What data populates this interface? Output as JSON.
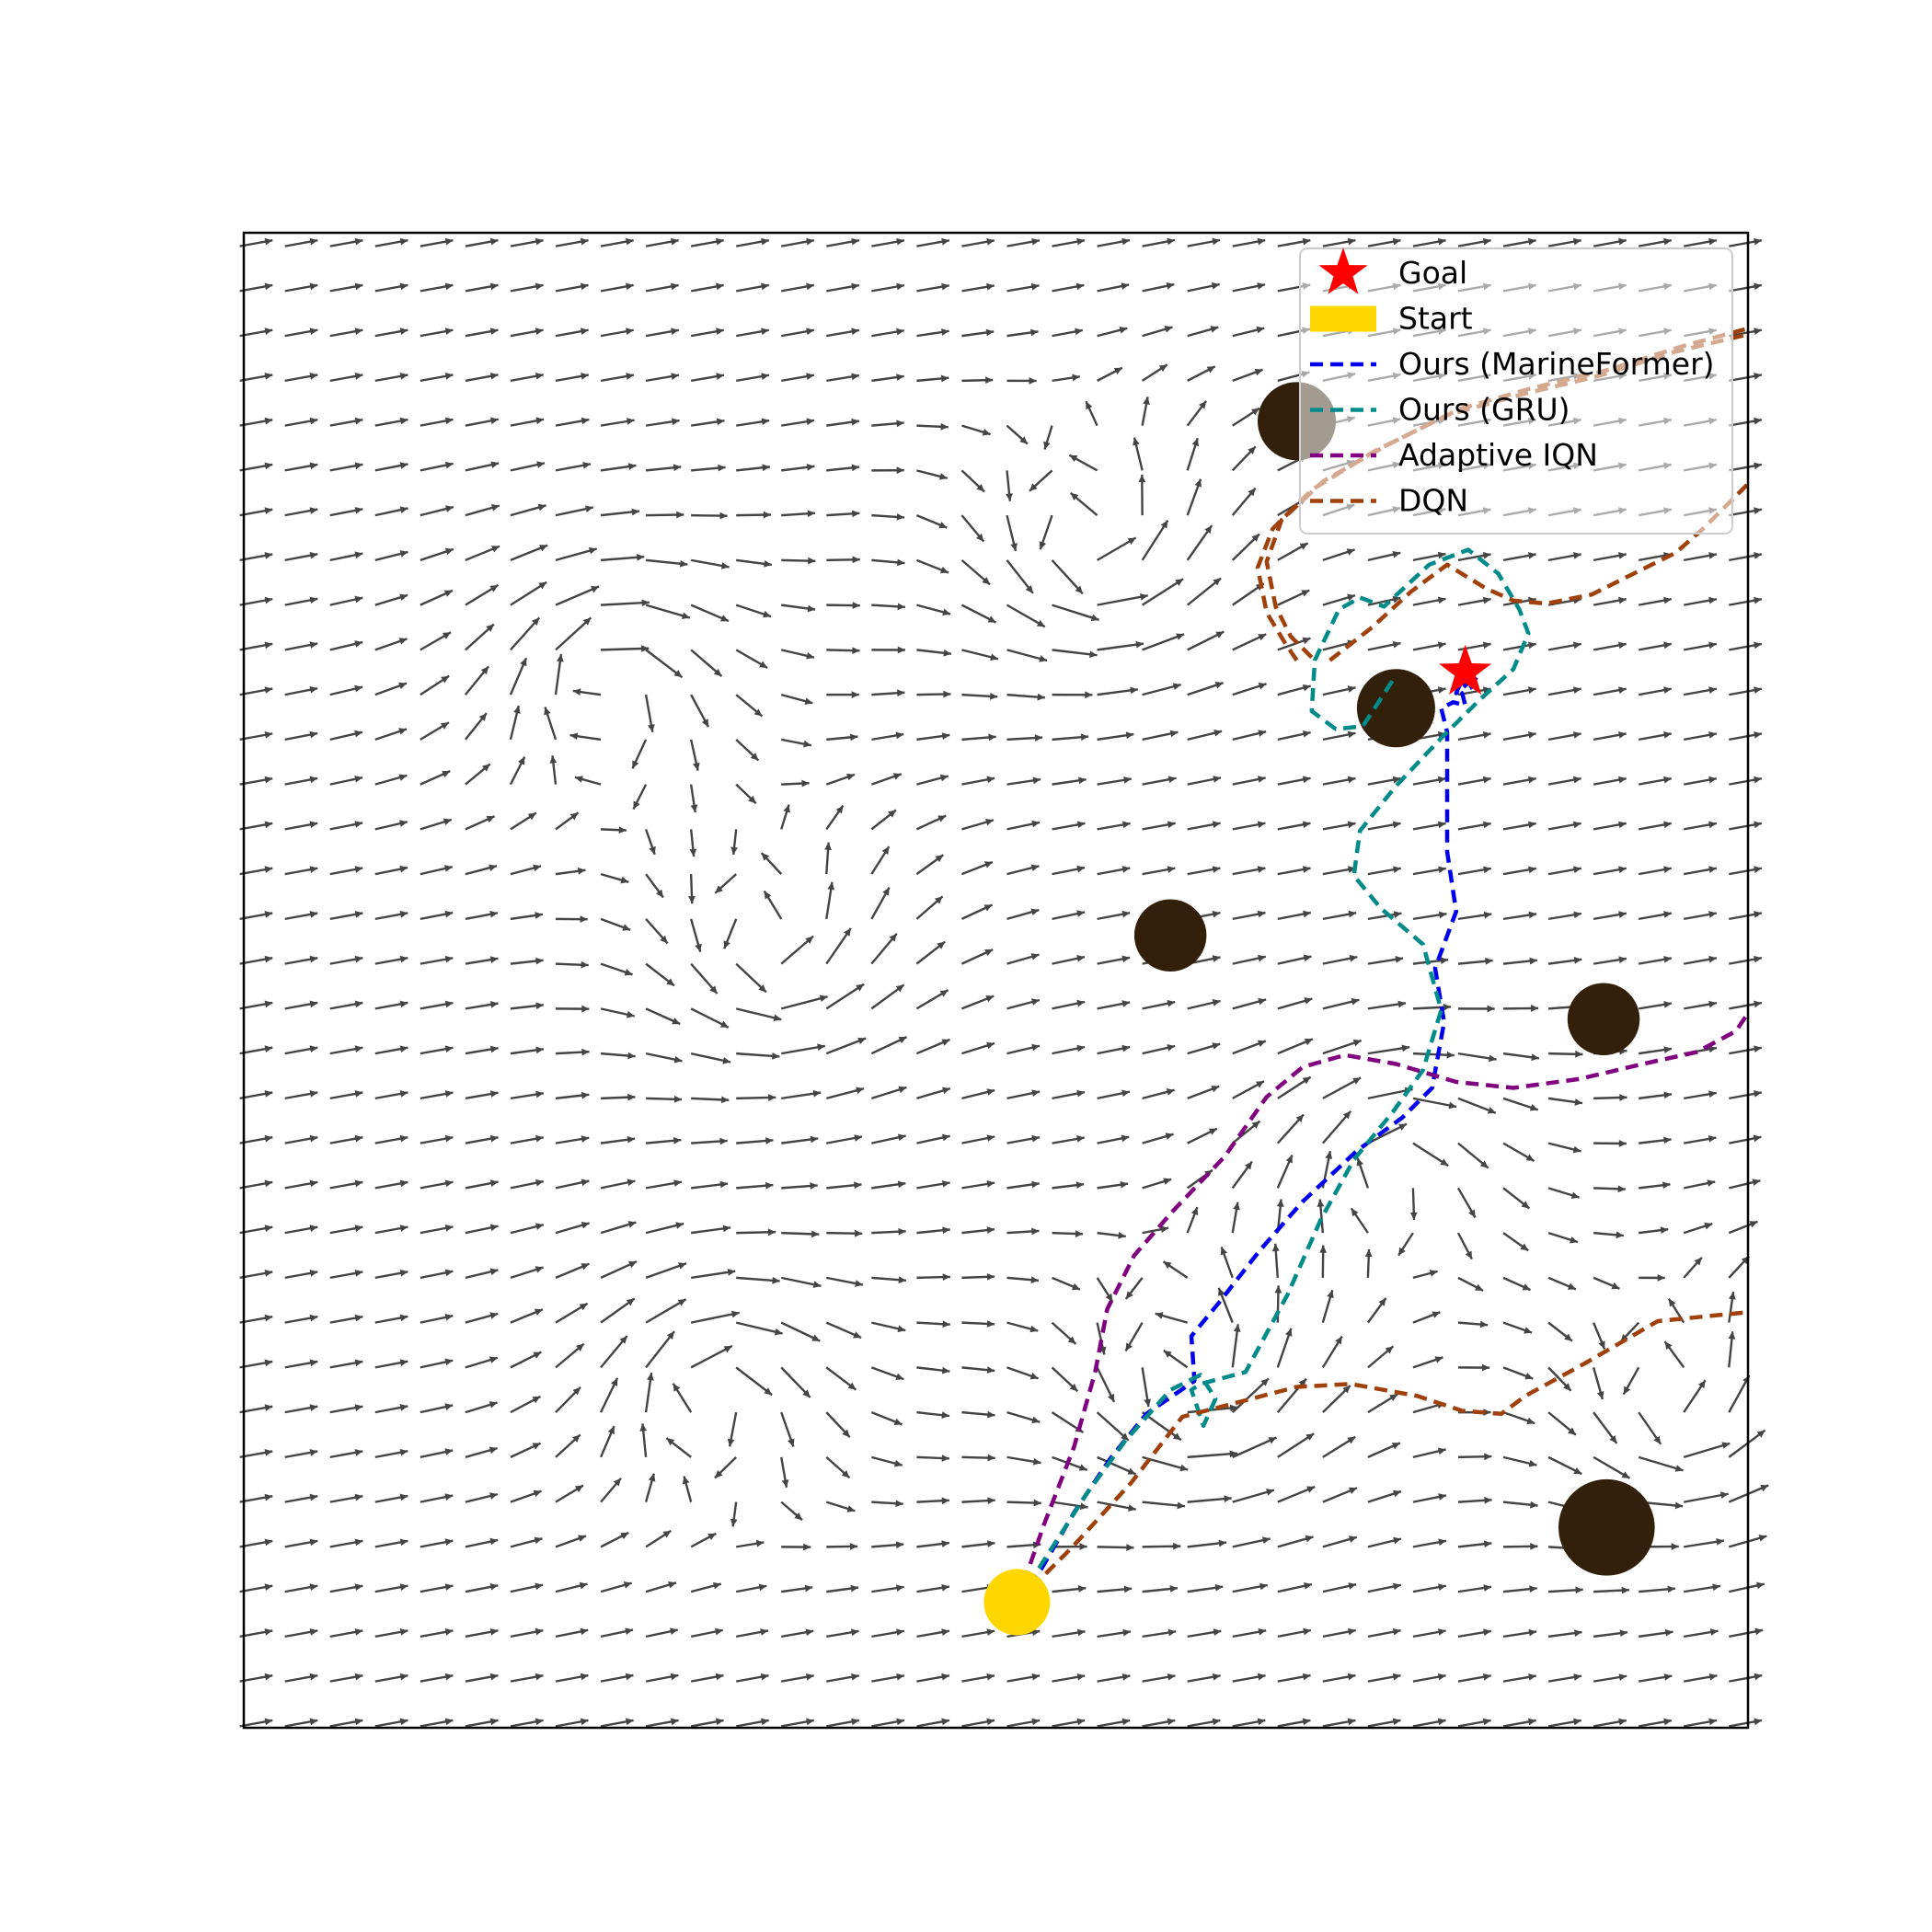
{
  "chart_data": {
    "type": "scatter",
    "xlim": [
      0,
      50
    ],
    "ylim": [
      0,
      50
    ],
    "grid": false,
    "title": "",
    "xlabel": "",
    "ylabel": "",
    "legend": {
      "placement": "top-right",
      "entries": [
        {
          "label": "Goal",
          "kind": "star",
          "color": "#ff0000"
        },
        {
          "label": "Start",
          "kind": "patch",
          "color": "#ffd700"
        },
        {
          "label": "Ours (MarineFormer)",
          "kind": "dashed-line",
          "color": "#0000ee"
        },
        {
          "label": "Ours (GRU)",
          "kind": "dashed-line",
          "color": "#008b8b"
        },
        {
          "label": "Adaptive IQN",
          "kind": "dashed-line",
          "color": "#800080"
        },
        {
          "label": "DQN",
          "kind": "dashed-line",
          "color": "#a0400a"
        }
      ]
    },
    "start": {
      "x": 25.7,
      "y": 4.2
    },
    "goal": {
      "x": 40.6,
      "y": 35.3
    },
    "obstacles": [
      {
        "x": 35.0,
        "y": 43.7,
        "r": 1.3
      },
      {
        "x": 38.3,
        "y": 34.1,
        "r": 1.3
      },
      {
        "x": 30.8,
        "y": 26.5,
        "r": 1.2
      },
      {
        "x": 45.2,
        "y": 23.7,
        "r": 1.2
      },
      {
        "x": 45.3,
        "y": 6.7,
        "r": 1.6
      }
    ],
    "vortices": [
      {
        "x": 28.2,
        "y": 39.4,
        "strength": 1.0
      },
      {
        "x": 12.0,
        "y": 35.2,
        "strength": -0.9
      },
      {
        "x": 17.5,
        "y": 25.8,
        "strength": 0.8
      },
      {
        "x": 15.5,
        "y": 11.5,
        "strength": -0.9
      },
      {
        "x": 31.5,
        "y": 11.5,
        "strength": 1.0
      },
      {
        "x": 38.0,
        "y": 19.0,
        "strength": -0.7
      },
      {
        "x": 47.5,
        "y": 10.5,
        "strength": 0.8
      }
    ],
    "series": [
      {
        "name": "Ours (MarineFormer)",
        "color": "#0000ee",
        "x": [
          25.7,
          26.5,
          27.6,
          28.8,
          30.0,
          31.6,
          31.5,
          32.4,
          33.8,
          35.2,
          37.0,
          38.5,
          39.5,
          39.9,
          39.6,
          40.3,
          40.0,
          40.0,
          40.0,
          39.8,
          40.2,
          40.6,
          40.5,
          40.8,
          41.0,
          40.3,
          40.6
        ],
        "y": [
          4.2,
          5.3,
          7.2,
          9.0,
          10.5,
          11.6,
          13.1,
          14.2,
          16.0,
          17.6,
          19.3,
          20.4,
          21.4,
          23.6,
          25.4,
          27.3,
          29.3,
          31.8,
          33.3,
          34.1,
          34.3,
          34.2,
          34.6,
          34.8,
          35.2,
          34.6,
          35.3
        ]
      },
      {
        "name": "Ours (GRU)",
        "color": "#008b8b",
        "x": [
          25.7,
          26.6,
          28.0,
          29.3,
          30.8,
          31.8,
          32.3,
          31.9,
          31.5,
          31.8,
          33.3,
          34.7,
          35.8,
          36.9,
          38.2,
          39.2,
          39.8,
          39.2,
          37.8,
          36.9,
          37.1,
          38.3,
          39.8,
          41.1,
          42.2,
          42.7,
          42.4,
          41.7,
          40.7,
          39.4,
          37.9,
          37.1,
          36.4,
          35.6,
          35.5,
          36.3,
          37.2,
          38.3
        ],
        "y": [
          4.2,
          5.6,
          7.8,
          9.6,
          11.3,
          11.8,
          11.0,
          10.1,
          11.3,
          11.5,
          11.9,
          14.5,
          17.0,
          19.0,
          20.6,
          22.0,
          24.0,
          26.2,
          27.4,
          28.5,
          30.0,
          31.5,
          33.1,
          34.4,
          35.4,
          36.6,
          37.4,
          38.6,
          39.4,
          38.9,
          37.5,
          37.8,
          37.4,
          35.7,
          34.0,
          33.4,
          33.5,
          35.2
        ]
      },
      {
        "name": "Adaptive IQN",
        "color": "#800080",
        "x": [
          25.7,
          26.6,
          27.6,
          28.3,
          28.7,
          29.6,
          30.9,
          32.6,
          34.0,
          35.2,
          36.6,
          38.3,
          40.3,
          42.2,
          44.4,
          46.5,
          48.3,
          49.6,
          50.0
        ],
        "y": [
          4.2,
          6.8,
          9.4,
          11.9,
          14.0,
          15.8,
          17.3,
          19.1,
          21.1,
          22.1,
          22.5,
          22.2,
          21.6,
          21.4,
          21.7,
          22.2,
          22.6,
          23.3,
          23.9
        ]
      },
      {
        "name": "DQN",
        "color": "#a0400a",
        "x": [
          25.7,
          27.5,
          29.5,
          31.2,
          33.1,
          35.0,
          36.8,
          39.0,
          40.5,
          41.8,
          42.6,
          44.6,
          47.0,
          50.0
        ],
        "y": [
          4.2,
          6.0,
          8.2,
          10.4,
          10.9,
          11.4,
          11.5,
          11.1,
          10.6,
          10.5,
          11.1,
          12.2,
          13.6,
          13.9
        ]
      },
      {
        "name": "DQN",
        "color": "#a0400a",
        "x": [
          36.1,
          37.5,
          38.8,
          40.0,
          41.3,
          42.2,
          43.3,
          44.8,
          46.2,
          47.6,
          48.5,
          50.0
        ],
        "y": [
          35.7,
          36.8,
          38.0,
          38.9,
          38.1,
          37.7,
          37.6,
          37.9,
          38.6,
          39.3,
          40.1,
          41.6
        ]
      },
      {
        "name": "DQN",
        "color": "#a0400a",
        "x": [
          35.0,
          34.6,
          34.0,
          33.7,
          34.2,
          35.5,
          37.6,
          40.0,
          42.5,
          45.0,
          47.5,
          50.0
        ],
        "y": [
          35.7,
          36.3,
          37.3,
          38.8,
          40.1,
          41.4,
          42.7,
          43.9,
          44.6,
          45.2,
          46.0,
          46.6
        ]
      },
      {
        "name": "DQN",
        "color": "#a0400a",
        "x": [
          35.5,
          34.8,
          34.3,
          34.0,
          34.5,
          35.9,
          38.0,
          40.4,
          42.8,
          45.3,
          47.8,
          50.0
        ],
        "y": [
          35.8,
          36.5,
          37.5,
          39.0,
          40.4,
          41.7,
          42.9,
          44.1,
          44.8,
          45.4,
          46.2,
          46.8
        ]
      }
    ]
  }
}
